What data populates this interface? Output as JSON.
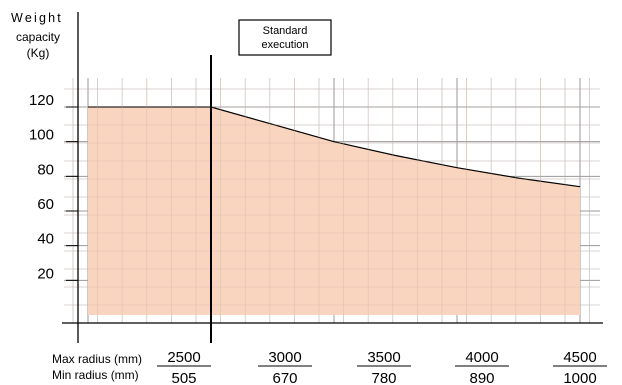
{
  "chart_data": {
    "type": "area",
    "ylabel": [
      "Weight",
      "capacity",
      "(Kg)"
    ],
    "x_row_labels": [
      "Max radius (mm)",
      "Min radius (mm)"
    ],
    "x_ticks": [
      {
        "max": "2500",
        "min": "505"
      },
      {
        "max": "3000",
        "min": "670"
      },
      {
        "max": "3500",
        "min": "780"
      },
      {
        "max": "4000",
        "min": "890"
      },
      {
        "max": "4500",
        "min": "1000"
      }
    ],
    "y_ticks": [
      "20",
      "40",
      "60",
      "80",
      "100",
      "120"
    ],
    "xlim": [
      2500,
      4500
    ],
    "ylim": [
      0,
      120
    ],
    "series": [
      {
        "x": [
          2500,
          3000,
          3250,
          3500,
          3750,
          4000,
          4250,
          4500
        ],
        "values": [
          120,
          120,
          110,
          100,
          92,
          85,
          79,
          74
        ]
      }
    ],
    "fill_color": "#f9d4be",
    "annotation": {
      "label_line1": "Standard",
      "label_line2": "execution",
      "x": 3000
    },
    "grid": true
  }
}
